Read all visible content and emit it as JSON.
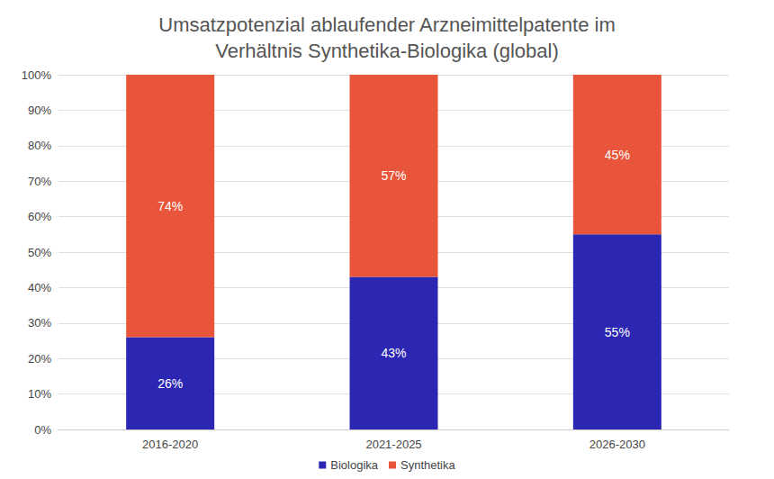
{
  "chart_data": {
    "type": "bar",
    "stacked": true,
    "title": "Umsatzpotenzial ablaufender Arzneimittelpatente im\nVerhältnis Synthetika-Biologika (global)",
    "categories": [
      "2016-2020",
      "2021-2025",
      "2026-2030"
    ],
    "series": [
      {
        "name": "Biologika",
        "color": "#2b27b3",
        "values": [
          26,
          43,
          55
        ],
        "value_labels": [
          "26%",
          "43%",
          "55%"
        ]
      },
      {
        "name": "Synthetika",
        "color": "#e9553a",
        "values": [
          74,
          57,
          45
        ],
        "value_labels": [
          "74%",
          "57%",
          "45%"
        ]
      }
    ],
    "ylim": [
      0,
      100
    ],
    "yticks": [
      {
        "value": 0,
        "label": "0%"
      },
      {
        "value": 10,
        "label": "10%"
      },
      {
        "value": 20,
        "label": "20%"
      },
      {
        "value": 30,
        "label": "30%"
      },
      {
        "value": 40,
        "label": "40%"
      },
      {
        "value": 50,
        "label": "50%"
      },
      {
        "value": 60,
        "label": "60%"
      },
      {
        "value": 70,
        "label": "70%"
      },
      {
        "value": 80,
        "label": "80%"
      },
      {
        "value": 90,
        "label": "90%"
      },
      {
        "value": 100,
        "label": "100%"
      }
    ],
    "grid": true,
    "legend": "bottom",
    "data_labels": true
  }
}
